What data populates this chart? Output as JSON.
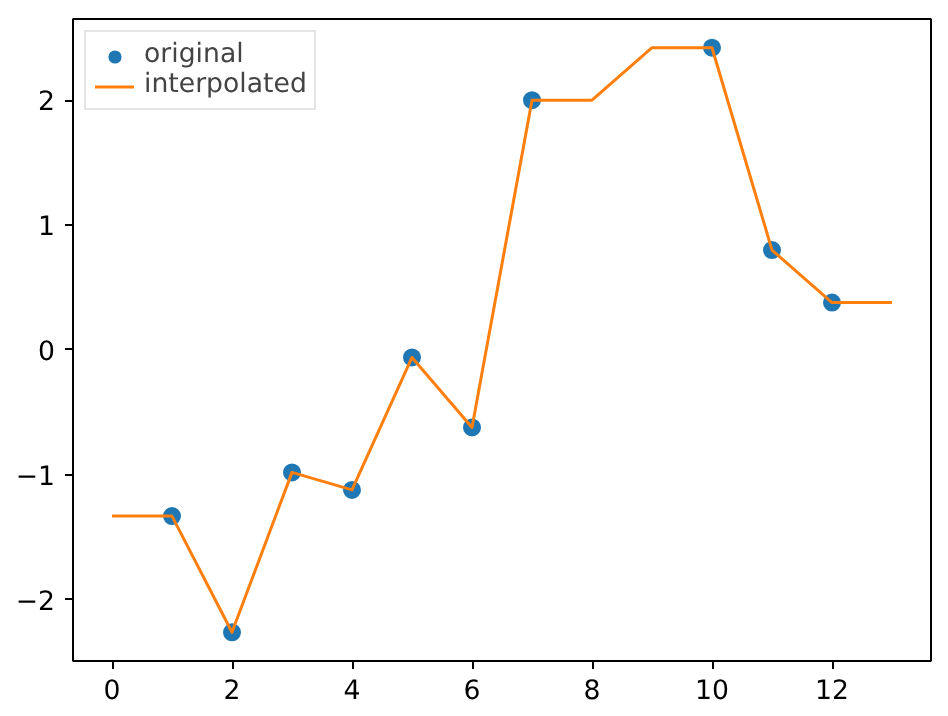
{
  "chart_data": {
    "type": "line",
    "xlim": [
      -0.65,
      13.65
    ],
    "ylim": [
      -2.49,
      2.65
    ],
    "xticks": [
      0,
      2,
      4,
      6,
      8,
      10,
      12
    ],
    "yticks": [
      -2,
      -1,
      0,
      1,
      2
    ],
    "grid": false,
    "legend": "top left",
    "series": [
      {
        "name": "original",
        "type": "scatter",
        "marker": "circle",
        "color": "#1f77b4",
        "x": [
          1,
          2,
          3,
          4,
          5,
          6,
          7,
          10,
          11,
          12
        ],
        "values": [
          -1.33,
          -2.26,
          -0.98,
          -1.12,
          -0.06,
          -0.62,
          2.0,
          2.42,
          0.8,
          0.38
        ]
      },
      {
        "name": "interpolated",
        "marker": "none",
        "line_style": "solid",
        "color": "#ff7f0e",
        "x": [
          0,
          1,
          2,
          3,
          4,
          5,
          6,
          7,
          8,
          9,
          10,
          11,
          12,
          13
        ],
        "values": [
          -1.33,
          -1.33,
          -2.26,
          -0.98,
          -1.12,
          -0.06,
          -0.62,
          2.0,
          2.0,
          2.42,
          2.42,
          0.8,
          0.38,
          0.38
        ]
      }
    ]
  }
}
